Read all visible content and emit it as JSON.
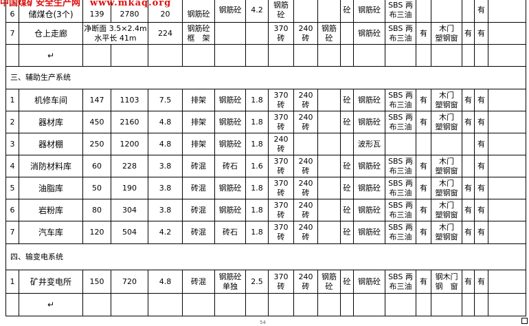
{
  "watermark": {
    "site": "中国煤矿安全生产网",
    "url": "www.mkaq.org"
  },
  "rows": [
    {
      "type": "data",
      "cells": [
        {
          "t": "6"
        },
        {
          "t": "储煤仓(3个)"
        },
        {
          "t": "139"
        },
        {
          "t": "2780"
        },
        {
          "t": "20"
        },
        {
          "t": "钢筋砼"
        },
        {
          "t": "钢筋砼"
        },
        {
          "t": "4.2"
        },
        {
          "t": "钢筋\n砼"
        },
        {
          "t": ""
        },
        {
          "t": ""
        },
        {
          "t": "砼"
        },
        {
          "t": "钢筋砼"
        },
        {
          "t": "SBS 两\n布三油"
        },
        {
          "t": ""
        },
        {
          "t": ""
        },
        {
          "t": ""
        },
        {
          "t": "有"
        },
        {
          "t": ""
        }
      ]
    },
    {
      "type": "data",
      "cells": [
        {
          "t": "7"
        },
        {
          "t": "仓上走廊"
        },
        {
          "t": "净断面 3.5×2.4m\n水平长 41m",
          "span": 2
        },
        {
          "t": "224"
        },
        {
          "t": "钢筋砼\n框　架"
        },
        {
          "t": ""
        },
        {
          "t": ""
        },
        {
          "t": "370\n砖"
        },
        {
          "t": "240\n砖"
        },
        {
          "t": "钢筋\n砼"
        },
        {
          "t": ""
        },
        {
          "t": "钢筋砼"
        },
        {
          "t": "SBS 两\n布三油"
        },
        {
          "t": "有"
        },
        {
          "t": "木门\n塑钢窗"
        },
        {
          "t": "有"
        },
        {
          "t": "有"
        },
        {
          "t": ""
        }
      ]
    },
    {
      "type": "data",
      "cells": [
        {
          "t": ""
        },
        {
          "t": "↵"
        },
        {
          "t": ""
        },
        {
          "t": ""
        },
        {
          "t": ""
        },
        {
          "t": ""
        },
        {
          "t": ""
        },
        {
          "t": ""
        },
        {
          "t": ""
        },
        {
          "t": ""
        },
        {
          "t": ""
        },
        {
          "t": ""
        },
        {
          "t": ""
        },
        {
          "t": ""
        },
        {
          "t": ""
        },
        {
          "t": ""
        },
        {
          "t": ""
        },
        {
          "t": ""
        },
        {
          "t": ""
        }
      ]
    },
    {
      "type": "section",
      "text": "三、辅助生产系统"
    },
    {
      "type": "data",
      "cells": [
        {
          "t": "1"
        },
        {
          "t": "机修车间"
        },
        {
          "t": "147"
        },
        {
          "t": "1103"
        },
        {
          "t": "7.5"
        },
        {
          "t": "排架"
        },
        {
          "t": "钢筋砼"
        },
        {
          "t": "1.8"
        },
        {
          "t": "370\n砖"
        },
        {
          "t": "240\n砖"
        },
        {
          "t": ""
        },
        {
          "t": "砼"
        },
        {
          "t": "钢筋砼"
        },
        {
          "t": "SBS 两\n布三油"
        },
        {
          "t": "有"
        },
        {
          "t": "木门\n塑钢窗"
        },
        {
          "t": "有"
        },
        {
          "t": "有"
        },
        {
          "t": ""
        }
      ]
    },
    {
      "type": "data",
      "cells": [
        {
          "t": "2"
        },
        {
          "t": "器材库"
        },
        {
          "t": "450"
        },
        {
          "t": "2160"
        },
        {
          "t": "4.8"
        },
        {
          "t": "排架"
        },
        {
          "t": "钢筋砼"
        },
        {
          "t": "1.8"
        },
        {
          "t": "370\n砖"
        },
        {
          "t": "240\n砖"
        },
        {
          "t": ""
        },
        {
          "t": "砼"
        },
        {
          "t": "钢筋砼"
        },
        {
          "t": "SBS 两\n布三油"
        },
        {
          "t": "有"
        },
        {
          "t": "木门\n塑钢窗"
        },
        {
          "t": "有"
        },
        {
          "t": "有"
        },
        {
          "t": ""
        }
      ]
    },
    {
      "type": "data",
      "cells": [
        {
          "t": "3"
        },
        {
          "t": "器材棚"
        },
        {
          "t": "250"
        },
        {
          "t": "1200"
        },
        {
          "t": "4.8"
        },
        {
          "t": "排架"
        },
        {
          "t": "钢筋砼"
        },
        {
          "t": "1.8"
        },
        {
          "t": "240\n砖"
        },
        {
          "t": ""
        },
        {
          "t": ""
        },
        {
          "t": ""
        },
        {
          "t": "波形瓦"
        },
        {
          "t": ""
        },
        {
          "t": ""
        },
        {
          "t": ""
        },
        {
          "t": ""
        },
        {
          "t": "有"
        },
        {
          "t": ""
        }
      ]
    },
    {
      "type": "data",
      "cells": [
        {
          "t": "4"
        },
        {
          "t": "消防材料库"
        },
        {
          "t": "60"
        },
        {
          "t": "228"
        },
        {
          "t": "3.8"
        },
        {
          "t": "砖混"
        },
        {
          "t": "砖石"
        },
        {
          "t": "1.6"
        },
        {
          "t": "370\n砖"
        },
        {
          "t": "240\n砖"
        },
        {
          "t": ""
        },
        {
          "t": "砼"
        },
        {
          "t": "钢筋砼"
        },
        {
          "t": "SBS 两\n布三油"
        },
        {
          "t": "有"
        },
        {
          "t": "木门\n塑钢窗"
        },
        {
          "t": ""
        },
        {
          "t": "有"
        },
        {
          "t": ""
        }
      ]
    },
    {
      "type": "data",
      "cells": [
        {
          "t": "5"
        },
        {
          "t": "油脂库"
        },
        {
          "t": "50"
        },
        {
          "t": "190"
        },
        {
          "t": "3.8"
        },
        {
          "t": "砖混"
        },
        {
          "t": "钢筋砼"
        },
        {
          "t": "1.8"
        },
        {
          "t": "370\n砖"
        },
        {
          "t": "240\n砖"
        },
        {
          "t": ""
        },
        {
          "t": "砼"
        },
        {
          "t": "钢筋砼"
        },
        {
          "t": "SBS 两\n布三油"
        },
        {
          "t": "有"
        },
        {
          "t": "木门\n塑钢窗"
        },
        {
          "t": "有"
        },
        {
          "t": "有"
        },
        {
          "t": ""
        }
      ]
    },
    {
      "type": "data",
      "cells": [
        {
          "t": "6"
        },
        {
          "t": "岩粉库"
        },
        {
          "t": "80"
        },
        {
          "t": "304"
        },
        {
          "t": "3.8"
        },
        {
          "t": "砖混"
        },
        {
          "t": "钢筋砼"
        },
        {
          "t": "1.8"
        },
        {
          "t": "370\n砖"
        },
        {
          "t": "240\n砖"
        },
        {
          "t": ""
        },
        {
          "t": "砼"
        },
        {
          "t": "钢筋砼"
        },
        {
          "t": "SBS 两\n布三油"
        },
        {
          "t": "有"
        },
        {
          "t": "木门\n塑钢窗"
        },
        {
          "t": "有"
        },
        {
          "t": "有"
        },
        {
          "t": ""
        }
      ]
    },
    {
      "type": "data",
      "cells": [
        {
          "t": "7"
        },
        {
          "t": "汽车库"
        },
        {
          "t": "120"
        },
        {
          "t": "504"
        },
        {
          "t": "4.2"
        },
        {
          "t": "砖混"
        },
        {
          "t": "砖石"
        },
        {
          "t": "1.8"
        },
        {
          "t": "370\n砖"
        },
        {
          "t": "240\n砖"
        },
        {
          "t": ""
        },
        {
          "t": "砼"
        },
        {
          "t": "钢筋砼"
        },
        {
          "t": "SBS 两\n布三油"
        },
        {
          "t": "有"
        },
        {
          "t": "木门\n塑钢窗"
        },
        {
          "t": "有"
        },
        {
          "t": "有"
        },
        {
          "t": ""
        }
      ]
    },
    {
      "type": "section",
      "text": "四、输变电系统"
    },
    {
      "type": "data",
      "cells": [
        {
          "t": "1"
        },
        {
          "t": "矿井变电所"
        },
        {
          "t": "150"
        },
        {
          "t": "720"
        },
        {
          "t": "4.8"
        },
        {
          "t": "砖混"
        },
        {
          "t": "钢筋砼\n单独"
        },
        {
          "t": "2.5"
        },
        {
          "t": "370\n砖"
        },
        {
          "t": "240\n砖"
        },
        {
          "t": "钢筋\n砼"
        },
        {
          "t": "砼"
        },
        {
          "t": "钢筋砼"
        },
        {
          "t": "SBS 两\n布三油"
        },
        {
          "t": "有"
        },
        {
          "t": "钢木门\n钢　窗"
        },
        {
          "t": "有"
        },
        {
          "t": "有"
        },
        {
          "t": ""
        }
      ]
    },
    {
      "type": "data",
      "cells": [
        {
          "t": ""
        },
        {
          "t": "↵"
        },
        {
          "t": ""
        },
        {
          "t": ""
        },
        {
          "t": ""
        },
        {
          "t": ""
        },
        {
          "t": ""
        },
        {
          "t": ""
        },
        {
          "t": ""
        },
        {
          "t": ""
        },
        {
          "t": ""
        },
        {
          "t": ""
        },
        {
          "t": ""
        },
        {
          "t": ""
        },
        {
          "t": ""
        },
        {
          "t": ""
        },
        {
          "t": ""
        },
        {
          "t": ""
        },
        {
          "t": ""
        }
      ]
    }
  ],
  "page_number": "54"
}
